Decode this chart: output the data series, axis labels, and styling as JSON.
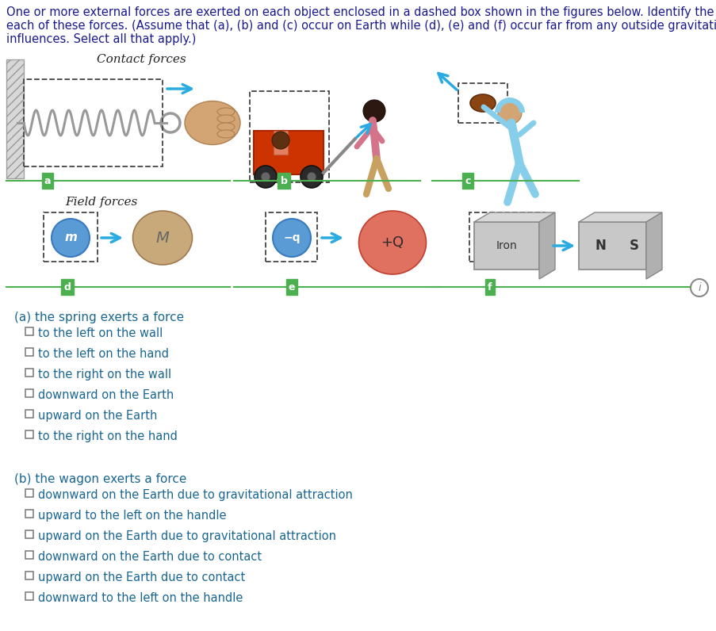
{
  "title_lines": [
    "One or more external forces are exerted on each object enclosed in a dashed box shown in the figures below. Identify the reaction to",
    "each of these forces. (Assume that (a), (b) and (c) occur on Earth while (d), (e) and (f) occur far from any outside gravitational",
    "influences. Select all that apply.)"
  ],
  "title_color": "#1a1a8c",
  "title_fontsize": 10.5,
  "contact_forces_label": "Contact forces",
  "field_forces_label": "Field forces",
  "label_bg_color": "#4caf50",
  "label_text_color": "#ffffff",
  "line_color": "#4caf50",
  "arrow_color": "#29abe2",
  "part_a_header": "(a) the spring exerts a force",
  "part_a_options": [
    "to the left on the wall",
    "to the left on the hand",
    "to the right on the wall",
    "downward on the Earth",
    "upward on the Earth",
    "to the right on the hand"
  ],
  "part_b_header": "(b) the wagon exerts a force",
  "part_b_options": [
    "downward on the Earth due to gravitational attraction",
    "upward to the left on the handle",
    "upward on the Earth due to gravitational attraction",
    "downward on the Earth due to contact",
    "upward on the Earth due to contact",
    "downward to the left on the handle"
  ],
  "option_header_color": "#1a6691",
  "option_text_color": "#1a6691",
  "header_fontsize": 11,
  "option_fontsize": 10.5,
  "checkbox_color": "#555555",
  "m_ball_color": "#5b9bd5",
  "M_ball_color": "#c8a97a",
  "neg_q_color": "#5b9bd5",
  "pos_Q_color": "#e07060"
}
